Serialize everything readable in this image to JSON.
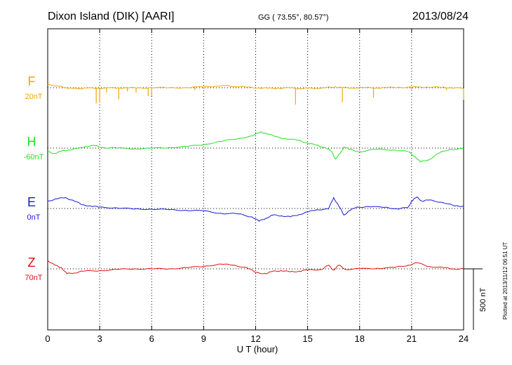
{
  "header": {
    "station": "Dixon Island (DIK)  [AARI]",
    "coords": "GG ( 73.55°,  80.57°)",
    "date": "2013/08/24"
  },
  "footer": {
    "plotted": "Plotted at 2013/11/12 06:51  UT"
  },
  "chart_data": {
    "type": "line",
    "xlabel": "U T (hour)",
    "xlim": [
      0,
      24
    ],
    "xticks": [
      0,
      3,
      6,
      9,
      12,
      15,
      18,
      21,
      24
    ],
    "scale_bar": "500 nT",
    "grid": true,
    "series": [
      {
        "name": "F",
        "offset_label": "20nT",
        "color": "#f0a800",
        "points": [
          [
            0,
            24
          ],
          [
            0.3,
            21
          ],
          [
            0.6,
            12
          ],
          [
            1,
            3
          ],
          [
            1.4,
            -6
          ],
          [
            1.8,
            -8
          ],
          [
            2.2,
            -2
          ],
          [
            2.8,
            -4
          ],
          [
            3.5,
            0
          ],
          [
            4,
            -3
          ],
          [
            4.6,
            1
          ],
          [
            5.2,
            -2
          ],
          [
            6,
            1
          ],
          [
            7,
            0
          ],
          [
            8,
            1
          ],
          [
            9,
            8
          ],
          [
            9.8,
            14
          ],
          [
            10.3,
            17
          ],
          [
            10.8,
            11
          ],
          [
            11.5,
            4
          ],
          [
            12.2,
            -1
          ],
          [
            12.7,
            -5
          ],
          [
            13.3,
            -3
          ],
          [
            14,
            -1
          ],
          [
            14.5,
            -7
          ],
          [
            15,
            -5
          ],
          [
            15.5,
            -4
          ],
          [
            16,
            -1
          ],
          [
            16.6,
            8
          ],
          [
            17,
            1
          ],
          [
            17.5,
            -1
          ],
          [
            18.2,
            1
          ],
          [
            19,
            -2
          ],
          [
            19.5,
            1
          ],
          [
            20.2,
            3
          ],
          [
            21,
            5
          ],
          [
            21.4,
            7
          ],
          [
            22,
            3
          ],
          [
            22.8,
            5
          ],
          [
            23.3,
            -2
          ],
          [
            24,
            -4
          ]
        ],
        "spikes": [
          [
            2.8,
            -130
          ],
          [
            3.0,
            -125
          ],
          [
            3.4,
            -40
          ],
          [
            4.1,
            -95
          ],
          [
            4.6,
            -30
          ],
          [
            5.1,
            -40
          ],
          [
            5.8,
            -70
          ],
          [
            6.0,
            -70
          ],
          [
            8.5,
            -20
          ],
          [
            14.3,
            -140
          ],
          [
            17.0,
            -120
          ],
          [
            18.8,
            -80
          ],
          [
            21.0,
            -30
          ],
          [
            23.0,
            -20
          ],
          [
            24.0,
            -100
          ]
        ]
      },
      {
        "name": "H",
        "offset_label": "-60nT",
        "color": "#22e022",
        "points": [
          [
            0,
            -30
          ],
          [
            0.4,
            -45
          ],
          [
            0.8,
            -25
          ],
          [
            1.2,
            -15
          ],
          [
            1.7,
            -5
          ],
          [
            2.2,
            15
          ],
          [
            2.7,
            20
          ],
          [
            3.2,
            5
          ],
          [
            4,
            0
          ],
          [
            5,
            -5
          ],
          [
            6,
            -2
          ],
          [
            7,
            5
          ],
          [
            8,
            12
          ],
          [
            9,
            30
          ],
          [
            10,
            55
          ],
          [
            11,
            80
          ],
          [
            11.8,
            100
          ],
          [
            12.3,
            135
          ],
          [
            12.6,
            120
          ],
          [
            13.2,
            95
          ],
          [
            13.8,
            75
          ],
          [
            14.5,
            65
          ],
          [
            15,
            40
          ],
          [
            15.5,
            25
          ],
          [
            16,
            5
          ],
          [
            16.4,
            -30
          ],
          [
            16.6,
            -90
          ],
          [
            16.9,
            -40
          ],
          [
            17.1,
            10
          ],
          [
            17.4,
            -10
          ],
          [
            18,
            -30
          ],
          [
            19,
            -10
          ],
          [
            20,
            -15
          ],
          [
            20.8,
            -30
          ],
          [
            21.2,
            -70
          ],
          [
            21.5,
            -115
          ],
          [
            22,
            -95
          ],
          [
            22.6,
            -40
          ],
          [
            23.2,
            -10
          ],
          [
            24,
            -5
          ]
        ]
      },
      {
        "name": "E",
        "offset_label": "0nT",
        "color": "#1a1ad8",
        "points": [
          [
            0,
            60
          ],
          [
            0.5,
            80
          ],
          [
            1,
            90
          ],
          [
            1.5,
            65
          ],
          [
            2,
            30
          ],
          [
            2.5,
            20
          ],
          [
            3,
            10
          ],
          [
            4,
            5
          ],
          [
            5,
            -5
          ],
          [
            6,
            -5
          ],
          [
            7,
            -10
          ],
          [
            8,
            -15
          ],
          [
            9,
            -20
          ],
          [
            10,
            -40
          ],
          [
            11,
            -45
          ],
          [
            11.8,
            -70
          ],
          [
            12.2,
            -105
          ],
          [
            12.6,
            -80
          ],
          [
            13,
            -55
          ],
          [
            13.5,
            -60
          ],
          [
            14,
            -70
          ],
          [
            14.5,
            -50
          ],
          [
            15,
            -30
          ],
          [
            15.5,
            -10
          ],
          [
            16.2,
            -5
          ],
          [
            16.5,
            90
          ],
          [
            16.8,
            20
          ],
          [
            17.1,
            -55
          ],
          [
            17.4,
            -20
          ],
          [
            17.8,
            10
          ],
          [
            18.5,
            15
          ],
          [
            19.5,
            10
          ],
          [
            20.2,
            -5
          ],
          [
            20.8,
            10
          ],
          [
            21,
            60
          ],
          [
            21.3,
            95
          ],
          [
            21.6,
            60
          ],
          [
            22,
            70
          ],
          [
            22.8,
            50
          ],
          [
            23.5,
            20
          ],
          [
            24,
            20
          ]
        ]
      },
      {
        "name": "Z",
        "offset_label": "70nT",
        "color": "#e01010",
        "points": [
          [
            0,
            70
          ],
          [
            0.4,
            30
          ],
          [
            0.8,
            10
          ],
          [
            1.1,
            -40
          ],
          [
            1.5,
            -35
          ],
          [
            2,
            -20
          ],
          [
            3,
            -15
          ],
          [
            4,
            -5
          ],
          [
            5,
            0
          ],
          [
            6,
            0
          ],
          [
            7,
            0
          ],
          [
            8,
            10
          ],
          [
            9,
            20
          ],
          [
            10,
            40
          ],
          [
            10.7,
            30
          ],
          [
            11.5,
            10
          ],
          [
            12,
            -30
          ],
          [
            12.6,
            -40
          ],
          [
            13,
            -20
          ],
          [
            13.5,
            -15
          ],
          [
            14,
            -25
          ],
          [
            14.5,
            -20
          ],
          [
            15,
            -10
          ],
          [
            15.8,
            -5
          ],
          [
            16.2,
            30
          ],
          [
            16.5,
            -10
          ],
          [
            16.8,
            30
          ],
          [
            17.2,
            -5
          ],
          [
            18,
            0
          ],
          [
            19,
            5
          ],
          [
            20,
            10
          ],
          [
            20.8,
            30
          ],
          [
            21.3,
            50
          ],
          [
            22,
            20
          ],
          [
            22.8,
            10
          ],
          [
            23.4,
            0
          ],
          [
            24,
            0
          ]
        ]
      }
    ]
  }
}
